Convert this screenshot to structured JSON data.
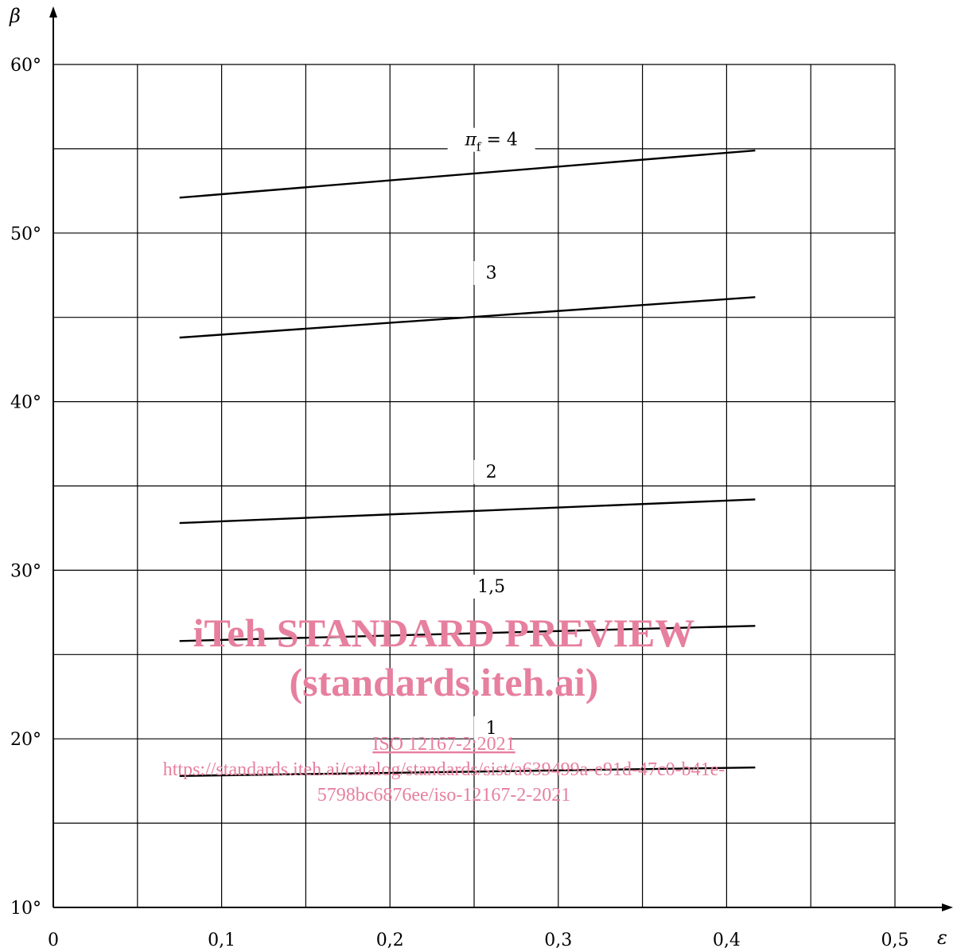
{
  "chart_data": {
    "type": "line",
    "xlabel": "ε",
    "ylabel": "β",
    "xlim": [
      0,
      0.5
    ],
    "ylim": [
      10,
      60
    ],
    "x_ticks": [
      "0",
      "0,1",
      "0,2",
      "0,3",
      "0,4",
      "0,5"
    ],
    "x_tick_values": [
      0,
      0.1,
      0.2,
      0.3,
      0.4,
      0.5
    ],
    "y_ticks": [
      "10°",
      "20°",
      "30°",
      "40°",
      "50°",
      "60°"
    ],
    "y_tick_values": [
      10,
      20,
      30,
      40,
      50,
      60
    ],
    "grid": true,
    "grid_x_step": 0.05,
    "grid_y_step": 5,
    "series_label_prefix": "π",
    "series_label_subscript": "f",
    "series_label_equals": " = ",
    "series": [
      {
        "name": "4",
        "label_x": 0.23,
        "label_y": 55.2,
        "x": [
          0.075,
          0.417
        ],
        "y": [
          52.1,
          54.9
        ]
      },
      {
        "name": "3",
        "label_x": 0.23,
        "label_y": 47.3,
        "x": [
          0.075,
          0.417
        ],
        "y": [
          43.8,
          46.2
        ]
      },
      {
        "name": "2",
        "label_x": 0.23,
        "label_y": 35.5,
        "x": [
          0.075,
          0.417
        ],
        "y": [
          32.8,
          34.2
        ]
      },
      {
        "name": "1,5",
        "label_x": 0.23,
        "label_y": 28.7,
        "x": [
          0.075,
          0.417
        ],
        "y": [
          25.8,
          26.7
        ]
      },
      {
        "name": "1",
        "label_x": 0.23,
        "label_y": 20.3,
        "x": [
          0.075,
          0.417
        ],
        "y": [
          17.8,
          18.3
        ]
      }
    ]
  },
  "watermark": {
    "title": "iTeh STANDARD PREVIEW",
    "site": "(standards.iteh.ai)",
    "doc": "ISO 12167-2:2021",
    "url_line1": "https://standards.iteh.ai/catalog/standards/sist/a639499a-e91d-47c0-b41e-",
    "url_line2": "5798bc6876ee/iso-12167-2-2021"
  },
  "colors": {
    "line": "#000000",
    "grid": "#000000",
    "watermark": "#e77f9f"
  }
}
